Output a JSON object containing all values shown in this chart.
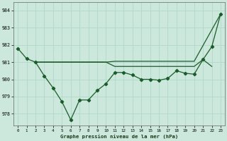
{
  "title": "Graphe pression niveau de la mer (hPa)",
  "bg_color": "#cce8dc",
  "grid_color": "#b0d8c8",
  "line_color": "#1a5c2a",
  "xlim": [
    -0.5,
    23.5
  ],
  "ylim": [
    977.3,
    984.5
  ],
  "yticks": [
    978,
    979,
    980,
    981,
    982,
    983,
    984
  ],
  "xticks": [
    0,
    1,
    2,
    3,
    4,
    5,
    6,
    7,
    8,
    9,
    10,
    11,
    12,
    13,
    14,
    15,
    16,
    17,
    18,
    19,
    20,
    21,
    22,
    23
  ],
  "line1_x": [
    0,
    1,
    2,
    3,
    4,
    5,
    6,
    7,
    8,
    9,
    10,
    11,
    12,
    13,
    14,
    15,
    16,
    17,
    18,
    19,
    20,
    21,
    22,
    23
  ],
  "line1_y": [
    981.8,
    981.2,
    981.0,
    980.2,
    979.5,
    978.7,
    977.65,
    978.8,
    978.8,
    979.35,
    979.75,
    980.4,
    980.4,
    980.25,
    980.0,
    980.0,
    979.95,
    980.05,
    980.5,
    980.35,
    980.3,
    981.15,
    981.9,
    983.8
  ],
  "line2_x": [
    2,
    3,
    4,
    5,
    6,
    7,
    8,
    9,
    10,
    11,
    12,
    13,
    14,
    15,
    16,
    17,
    18,
    19,
    20,
    23
  ],
  "line2_y": [
    981.0,
    981.0,
    981.0,
    981.0,
    981.0,
    981.0,
    981.0,
    981.0,
    981.0,
    981.05,
    981.05,
    981.05,
    981.05,
    981.05,
    981.05,
    981.05,
    981.05,
    981.05,
    981.05,
    983.8
  ],
  "line3_x": [
    2,
    10,
    11,
    12,
    13,
    14,
    15,
    16,
    17,
    18,
    19,
    20,
    21,
    22
  ],
  "line3_y": [
    981.0,
    981.0,
    980.75,
    980.75,
    980.75,
    980.75,
    980.75,
    980.75,
    980.75,
    980.75,
    980.75,
    980.75,
    981.15,
    980.75
  ]
}
